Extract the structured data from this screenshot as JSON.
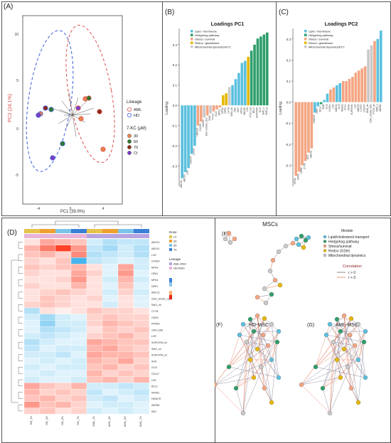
{
  "colors": {
    "aml": "#d9534f",
    "hd": "#3b5bdb",
    "lipid": "#5bc0de",
    "hedgehog": "#2e9e6b",
    "stress": "#f4a582",
    "redox": "#e6b800",
    "mito": "#c9c9c9"
  },
  "panelA": {
    "label": "(A)",
    "xlabel": "PC1 (39.9%)",
    "ylabel": "PC2 (24.1%)",
    "xticks": [
      "-4",
      "0",
      "4"
    ],
    "yticks": [
      "10",
      "5",
      "0",
      "-5"
    ],
    "legend": {
      "lineage_title": "Lineage",
      "lineage": [
        "AML",
        "HD"
      ],
      "kc_title": "7-KC (μM)",
      "kc": [
        "30",
        "50",
        "70",
        "Ct"
      ],
      "kc_colors": [
        "#e8834e",
        "#2a7a2a",
        "#8b2b1a",
        "#7b3fc4"
      ]
    }
  },
  "panelB": {
    "label": "(B)",
    "title": "Loadings PC1",
    "ylabel": "Loading",
    "yticks": [
      "0.3",
      "0.2",
      "0.1",
      "0.0",
      "-0.1",
      "-0.2",
      "-0.3"
    ],
    "legend": [
      "Lipid / membrane",
      "Hedgehog pathway",
      "Stress / survival",
      "Redox / glutathione",
      "Mitochondrial dynamics/ETC"
    ],
    "chart_data": {
      "type": "bar",
      "categories": [
        "ABCA1",
        "ABCG1",
        "LXR",
        "DHCR7",
        "CYP27",
        "HMGCR",
        "CH25H",
        "INSIG1",
        "GSH_GSSG_ratio",
        "SMO",
        "PTCH",
        "GLI1",
        "OPA1",
        "MFN2",
        "DRP1",
        "CYTB",
        "SMO_hh",
        "ND2",
        "GSH",
        "HIF1A",
        "ABCD1",
        "LSS",
        "PTCH_hh",
        "BCL2",
        "SURVIVIN",
        "GLI3",
        "SMO_x",
        "SMO_y"
      ],
      "values": [
        -0.36,
        -0.33,
        -0.31,
        -0.24,
        -0.2,
        -0.1,
        -0.08,
        -0.06,
        -0.05,
        -0.04,
        -0.03,
        -0.02,
        -0.01,
        0.05,
        0.06,
        0.09,
        0.1,
        0.13,
        0.16,
        0.21,
        0.22,
        0.24,
        0.27,
        0.3,
        0.33,
        0.34,
        0.35,
        0.36
      ],
      "colors": [
        "#5bc0de",
        "#5bc0de",
        "#5bc0de",
        "#5bc0de",
        "#5bc0de",
        "#f4a582",
        "#f4a582",
        "#c9c9c9",
        "#f4a582",
        "#c9c9c9",
        "#f4a582",
        "#f4a582",
        "#f4a582",
        "#e6b800",
        "#e6b800",
        "#c9c9c9",
        "#5bc0de",
        "#5bc0de",
        "#5bc0de",
        "#5bc0de",
        "#5bc0de",
        "#e6b800",
        "#2e9e6b",
        "#2e9e6b",
        "#2e9e6b",
        "#2e9e6b",
        "#2e9e6b",
        "#2e9e6b"
      ],
      "ylim": [
        -0.4,
        0.38
      ]
    }
  },
  "panelC": {
    "label": "(C)",
    "title": "Loadings PC2",
    "ylabel": "Loading",
    "yticks": [
      "0.3",
      "0.2",
      "0.1",
      "0.0",
      "-0.1",
      "-0.2",
      "-0.3"
    ],
    "legend": [
      "Lipid / membrane",
      "Hedgehog pathway",
      "Stress / survival",
      "Redox / glutathione",
      "Mitochondrial dynamics/ETC"
    ],
    "chart_data": {
      "type": "bar",
      "categories": [
        "MFN2",
        "DRP1",
        "OPA1",
        "CYTB",
        "ND2",
        "ABCA1",
        "HMGCR",
        "GSH",
        "BCL2",
        "SMO",
        "GLI1",
        "CH25H",
        "LXR",
        "ABCG1",
        "GLI3",
        "INSIG1",
        "PTCH",
        "HIF1A",
        "SURVIVIN",
        "LSS",
        "ABCD1",
        "CYP27",
        "DHCR7",
        "SMO_hh",
        "GSH_GSSG_ratio",
        "PTCH_hh",
        "SMO_x",
        "ABCB4"
      ],
      "values": [
        -0.35,
        -0.33,
        -0.3,
        -0.28,
        -0.24,
        -0.22,
        -0.05,
        -0.02,
        -0.01,
        0.01,
        0.04,
        0.06,
        0.07,
        0.08,
        0.09,
        0.1,
        0.1,
        0.11,
        0.12,
        0.14,
        0.15,
        0.16,
        0.17,
        0.25,
        0.27,
        0.29,
        0.3,
        0.34
      ],
      "colors": [
        "#f4a582",
        "#f4a582",
        "#f4a582",
        "#f4a582",
        "#f4a582",
        "#f4a582",
        "#5bc0de",
        "#5bc0de",
        "#2e9e6b",
        "#5bc0de",
        "#5bc0de",
        "#f4a582",
        "#f4a582",
        "#5bc0de",
        "#5bc0de",
        "#f4a582",
        "#f4a582",
        "#f4a582",
        "#f4a582",
        "#f4a582",
        "#f4a582",
        "#f4a582",
        "#f4a582",
        "#c9c9c9",
        "#c9c9c9",
        "#f4a582",
        "#5bc0de",
        "#5bc0de"
      ],
      "ylim": [
        -0.4,
        0.35
      ]
    }
  },
  "panelD": {
    "label": "(D)",
    "columns": [
      "HD_Ct",
      "HD_30",
      "HD_50",
      "HD_70",
      "AML_Ct",
      "AML_30",
      "AML_50",
      "AML_70"
    ],
    "legend_dose_title": "Dose",
    "legend_dose": [
      "Ct",
      "30",
      "50",
      "70"
    ],
    "legend_lineage_title": "Lineage",
    "legend_lineage": [
      "AML-MSC",
      "HD-MSC"
    ],
    "rows": [
      "ABCD1",
      "ABCA1",
      "LXR",
      "CH25H",
      "MFN2",
      "OPA1",
      "MFN1",
      "DRP1",
      "ABCG1",
      "GSH_GSSG_ratio",
      "SMO_hh",
      "CYTB",
      "GSSG",
      "PPARG",
      "GSH_total",
      "LXR",
      "SURVIVIN_hh",
      "SMO_cd",
      "SURVIVIN_cd",
      "SHH",
      "GLI3",
      "CD147",
      "LSS",
      "BCL2",
      "NFKB1",
      "HGMCR",
      "ABCB4",
      "ND1"
    ],
    "values": [
      [
        0.2,
        0.6,
        0.5,
        0.4,
        -0.3,
        -0.5,
        -0.4,
        -0.4
      ],
      [
        0.5,
        0.9,
        1.3,
        0.7,
        -0.4,
        -0.6,
        -0.3,
        -0.5
      ],
      [
        0.4,
        0.5,
        0.3,
        0.8,
        -0.5,
        -0.4,
        -0.3,
        -0.5
      ],
      [
        0.3,
        0.2,
        0.4,
        -1.2,
        -0.4,
        -0.3,
        -0.2,
        -0.3
      ],
      [
        0.4,
        0.3,
        0.4,
        0.5,
        0.2,
        -0.2,
        0.6,
        -0.3
      ],
      [
        0.3,
        0.2,
        0.2,
        0.6,
        0.3,
        -0.2,
        0.7,
        -0.2
      ],
      [
        0.2,
        0.2,
        0.3,
        0.7,
        0.2,
        -0.3,
        0.5,
        -0.3
      ],
      [
        0.3,
        0.2,
        0.2,
        0.5,
        0.2,
        -0.2,
        0.4,
        -0.2
      ],
      [
        0.2,
        0.3,
        0.4,
        0.3,
        0.2,
        -0.3,
        0.3,
        -0.3
      ],
      [
        0.2,
        0.4,
        0.3,
        0.2,
        0.3,
        -0.2,
        0.2,
        -0.2
      ],
      [
        0.3,
        0.4,
        0.3,
        0.2,
        0.2,
        -0.3,
        0.2,
        -0.2
      ],
      [
        -0.5,
        0.2,
        0.1,
        0.2,
        0.4,
        0.3,
        0.3,
        0.2
      ],
      [
        -0.3,
        -0.6,
        -0.3,
        -0.2,
        0.3,
        0.4,
        0.3,
        0.3
      ],
      [
        -0.2,
        -0.7,
        -0.3,
        -0.3,
        0.3,
        0.5,
        0.4,
        0.3
      ],
      [
        -0.2,
        -0.5,
        -0.4,
        -0.3,
        0.2,
        0.4,
        0.3,
        0.4
      ],
      [
        -0.3,
        -0.4,
        -0.3,
        -0.2,
        0.3,
        0.4,
        0.5,
        0.3
      ],
      [
        -0.5,
        -0.3,
        -0.2,
        -0.2,
        0.6,
        0.5,
        0.4,
        0.4
      ],
      [
        -0.4,
        -0.2,
        -0.3,
        -0.3,
        0.5,
        0.6,
        0.4,
        0.3
      ],
      [
        -0.3,
        -0.3,
        -0.4,
        -0.2,
        0.6,
        0.5,
        0.5,
        0.4
      ],
      [
        -0.2,
        -0.3,
        -0.2,
        -0.3,
        0.5,
        0.4,
        0.6,
        0.3
      ],
      [
        -0.3,
        -0.2,
        -0.3,
        -0.3,
        0.4,
        0.5,
        0.3,
        0.4
      ],
      [
        -0.2,
        -0.3,
        -0.2,
        -0.2,
        0.5,
        0.3,
        0.4,
        0.3
      ],
      [
        -0.3,
        -0.2,
        -0.2,
        -0.3,
        0.4,
        0.5,
        0.3,
        0.5
      ],
      [
        0.6,
        0.4,
        0.3,
        0.5,
        -0.3,
        -0.3,
        -0.4,
        -0.3
      ],
      [
        0.5,
        0.3,
        0.4,
        0.3,
        -0.4,
        -0.2,
        -0.3,
        -0.4
      ],
      [
        0.4,
        0.5,
        0.3,
        0.4,
        -0.3,
        -0.4,
        -0.2,
        -0.3
      ],
      [
        0.7,
        0.4,
        0.5,
        0.3,
        -0.2,
        -0.3,
        -0.3,
        -0.2
      ],
      [
        0.3,
        0.4,
        0.2,
        0.3,
        -0.3,
        -0.2,
        -0.3,
        -0.2
      ]
    ]
  },
  "panelE": {
    "label": "(E)",
    "title": "MSCs",
    "legend_title": "Module",
    "modules": [
      "Lipid/cholesterol transport",
      "Hedgehog pathway",
      "Stress/survival",
      "Redox (GSH)",
      "Mitochondrial dynamics"
    ],
    "corr_title": "Correlation",
    "corr_pos": "r > 0",
    "corr_neg": "r < 0"
  },
  "panelF": {
    "label": "(F)",
    "title": "HD-MSC"
  },
  "panelG": {
    "label": "(G)",
    "title": "AML-MSC"
  }
}
